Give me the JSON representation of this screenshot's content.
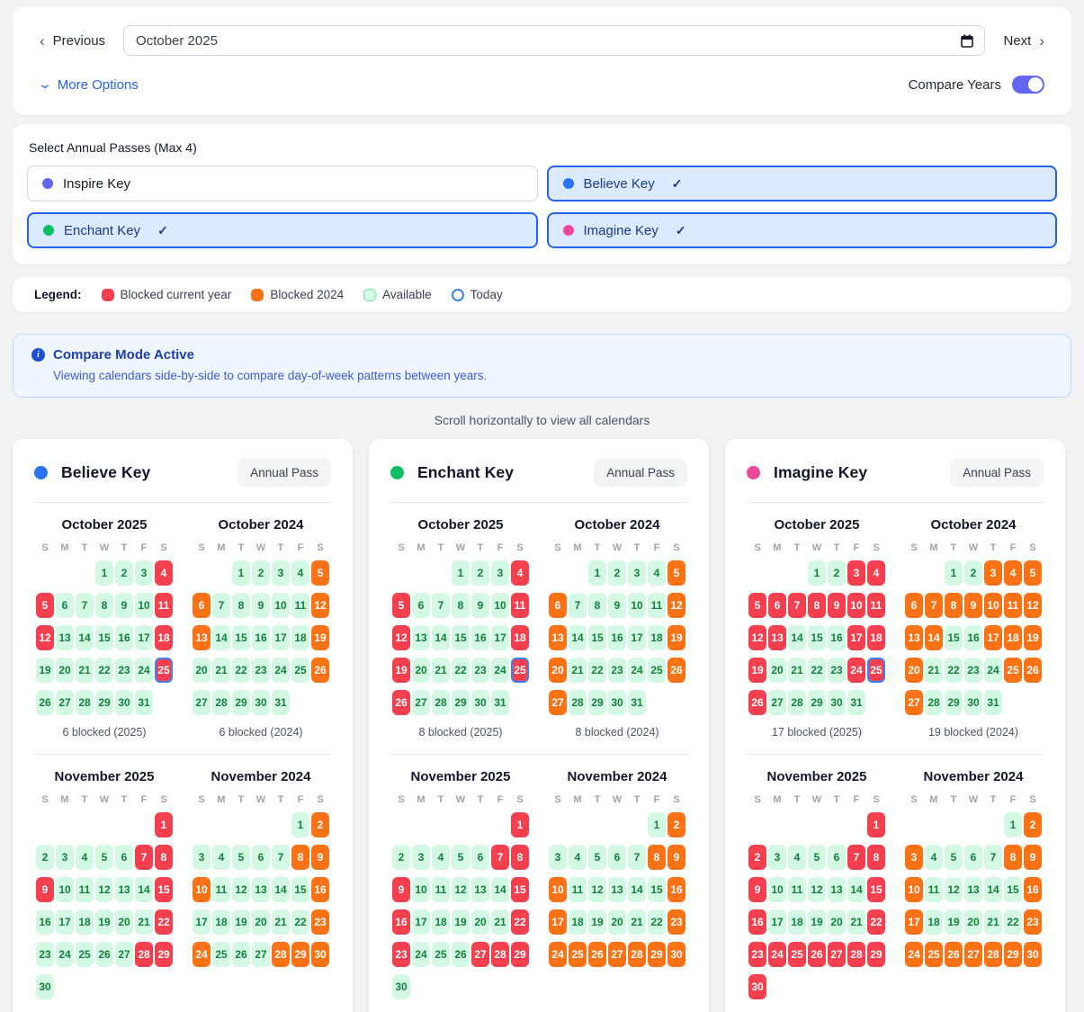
{
  "icons": {
    "chevron_left": "‹",
    "chevron_right": "›",
    "chevron_down": "⌄",
    "check": "✓",
    "info": "i"
  },
  "colors": {
    "blocked_current": "#f43f4e",
    "blocked_2024": "#f97316",
    "available_bg": "#d3f8e3",
    "available_text": "#15803d",
    "today_ring": "#3b82f6",
    "accent_blue": "#2563eb",
    "toggle_on": "#6366f1"
  },
  "toolbar": {
    "previous_label": "Previous",
    "next_label": "Next",
    "month_input_value": "October 2025",
    "more_options_label": "More Options",
    "compare_years_label": "Compare Years",
    "compare_years_on": true
  },
  "pass_selector": {
    "title": "Select Annual Passes (Max 4)",
    "options": [
      {
        "label": "Inspire Key",
        "color": "#6366f1",
        "selected": false
      },
      {
        "label": "Believe Key",
        "color": "#2b74f1",
        "selected": true
      },
      {
        "label": "Enchant Key",
        "color": "#0abf66",
        "selected": true
      },
      {
        "label": "Imagine Key",
        "color": "#ec4899",
        "selected": true
      }
    ]
  },
  "legend": {
    "title": "Legend:",
    "items": [
      {
        "label": "Blocked current year",
        "swatch": "blocked-current"
      },
      {
        "label": "Blocked 2024",
        "swatch": "blocked-2024"
      },
      {
        "label": "Available",
        "swatch": "available"
      },
      {
        "label": "Today",
        "swatch": "today"
      }
    ]
  },
  "notice": {
    "title": "Compare Mode Active",
    "body": "Viewing calendars side-by-side to compare day-of-week patterns between years."
  },
  "scroll_hint": "Scroll horizontally to view all calendars",
  "weekday_letters": [
    "S",
    "M",
    "T",
    "W",
    "T",
    "F",
    "S"
  ],
  "cards": [
    {
      "name": "Believe Key",
      "dot_color": "#2b74f1",
      "badge": "Annual Pass",
      "month_rows": [
        {
          "months": [
            {
              "title": "October 2025",
              "offset": 3,
              "days": 31,
              "blocked_style": "current",
              "blocked": [
                4,
                5,
                11,
                12,
                18,
                25
              ],
              "today": 25,
              "caption": "6 blocked (2025)"
            },
            {
              "title": "October 2024",
              "offset": 2,
              "days": 31,
              "blocked_style": "2024",
              "blocked": [
                5,
                6,
                12,
                13,
                19,
                26
              ],
              "caption": "6 blocked (2024)"
            }
          ]
        },
        {
          "months": [
            {
              "title": "November 2025",
              "offset": 6,
              "days": 30,
              "blocked_style": "current",
              "blocked": [
                1,
                7,
                8,
                9,
                15,
                22,
                28,
                29
              ]
            },
            {
              "title": "November 2024",
              "offset": 5,
              "days": 30,
              "blocked_style": "2024",
              "blocked": [
                2,
                8,
                9,
                10,
                16,
                23,
                24,
                28,
                29,
                30
              ]
            }
          ]
        }
      ]
    },
    {
      "name": "Enchant Key",
      "dot_color": "#0abf66",
      "badge": "Annual Pass",
      "month_rows": [
        {
          "months": [
            {
              "title": "October 2025",
              "offset": 3,
              "days": 31,
              "blocked_style": "current",
              "blocked": [
                4,
                5,
                11,
                12,
                18,
                19,
                25,
                26
              ],
              "today": 25,
              "caption": "8 blocked (2025)"
            },
            {
              "title": "October 2024",
              "offset": 2,
              "days": 31,
              "blocked_style": "2024",
              "blocked": [
                5,
                6,
                12,
                13,
                19,
                20,
                26,
                27
              ],
              "caption": "8 blocked (2024)"
            }
          ]
        },
        {
          "months": [
            {
              "title": "November 2025",
              "offset": 6,
              "days": 30,
              "blocked_style": "current",
              "blocked": [
                1,
                7,
                8,
                9,
                15,
                16,
                22,
                23,
                27,
                28,
                29
              ]
            },
            {
              "title": "November 2024",
              "offset": 5,
              "days": 30,
              "blocked_style": "2024",
              "blocked": [
                2,
                8,
                9,
                10,
                16,
                17,
                23,
                24,
                25,
                26,
                27,
                28,
                29,
                30
              ]
            }
          ]
        }
      ]
    },
    {
      "name": "Imagine Key",
      "dot_color": "#ec4899",
      "badge": "Annual Pass",
      "month_rows": [
        {
          "months": [
            {
              "title": "October 2025",
              "offset": 3,
              "days": 31,
              "blocked_style": "current",
              "blocked": [
                3,
                4,
                5,
                6,
                7,
                8,
                9,
                10,
                11,
                12,
                13,
                17,
                18,
                19,
                24,
                25,
                26
              ],
              "today": 25,
              "caption": "17 blocked (2025)"
            },
            {
              "title": "October 2024",
              "offset": 2,
              "days": 31,
              "blocked_style": "2024",
              "blocked": [
                3,
                4,
                5,
                6,
                7,
                8,
                9,
                10,
                11,
                12,
                13,
                14,
                17,
                18,
                19,
                20,
                25,
                26,
                27
              ],
              "caption": "19 blocked (2024)"
            }
          ]
        },
        {
          "months": [
            {
              "title": "November 2025",
              "offset": 6,
              "days": 30,
              "blocked_style": "current",
              "blocked": [
                1,
                2,
                7,
                8,
                9,
                15,
                16,
                22,
                23,
                24,
                25,
                26,
                27,
                28,
                29,
                30
              ]
            },
            {
              "title": "November 2024",
              "offset": 5,
              "days": 30,
              "blocked_style": "2024",
              "blocked": [
                2,
                3,
                8,
                9,
                10,
                16,
                17,
                23,
                24,
                25,
                26,
                27,
                28,
                29,
                30
              ]
            }
          ]
        }
      ]
    }
  ]
}
